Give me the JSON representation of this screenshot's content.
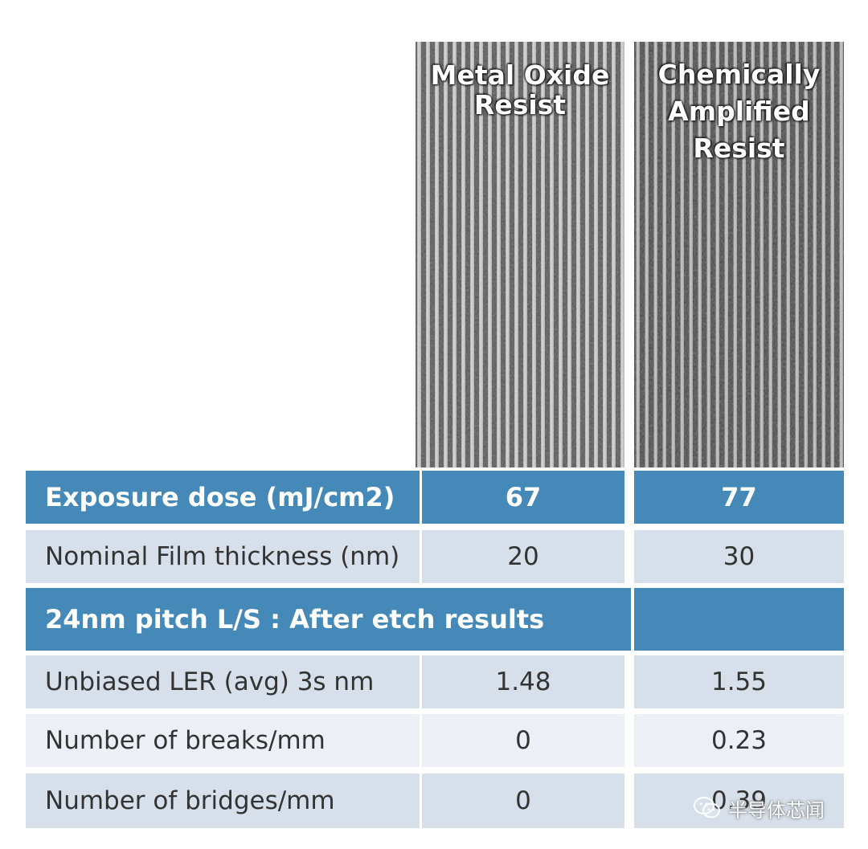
{
  "images": {
    "metal_oxide": {
      "label": "Metal Oxide\nResist"
    },
    "chemically_amplified": {
      "label": "Chemically\nAmplified\nResist"
    }
  },
  "table": {
    "rows": [
      {
        "kind": "header",
        "label": "Exposure dose (mJ/cm2)",
        "mor": "67",
        "car": "77"
      },
      {
        "kind": "data",
        "label": "Nominal Film thickness (nm)",
        "mor": "20",
        "car": "30"
      },
      {
        "kind": "section",
        "label": "24nm pitch L/S : After etch results",
        "mor": "",
        "car": ""
      },
      {
        "kind": "data",
        "label": "Unbiased LER (avg) 3s nm",
        "mor": "1.48",
        "car": "1.55"
      },
      {
        "kind": "data",
        "label": "Number of breaks/mm",
        "mor": "0",
        "car": "0.23"
      },
      {
        "kind": "data",
        "label": "Number of bridges/mm",
        "mor": "0",
        "car": "0.39"
      }
    ]
  },
  "watermark": {
    "text": "半导体芯闻",
    "icon": "wechat-icon"
  },
  "colors": {
    "header_blue": "#4489b7",
    "row_light": "#d6dfea",
    "row_lighter": "#ecf0f6"
  }
}
